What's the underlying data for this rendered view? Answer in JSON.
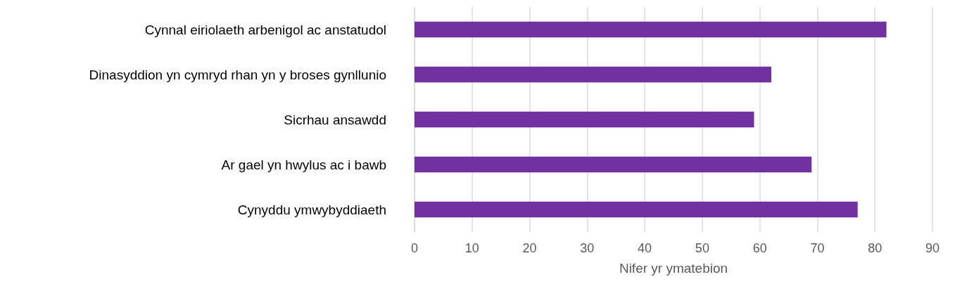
{
  "chart_data": {
    "type": "bar",
    "orientation": "horizontal",
    "xlabel": "Nifer yr ymatebion",
    "categories": [
      "Cynnal eiriolaeth arbenigol ac anstatudol",
      "Dinasyddion yn cymryd rhan yn y broses gynllunio",
      "Sicrhau ansawdd",
      "Ar gael yn hwylus ac i bawb",
      "Cynyddu ymwybyddiaeth"
    ],
    "values": [
      82,
      62,
      59,
      69,
      77
    ],
    "color": "#7030a0",
    "xlim": [
      0,
      90
    ],
    "xticks": [
      0,
      10,
      20,
      30,
      40,
      50,
      60,
      70,
      80,
      90
    ],
    "grid": "x"
  }
}
